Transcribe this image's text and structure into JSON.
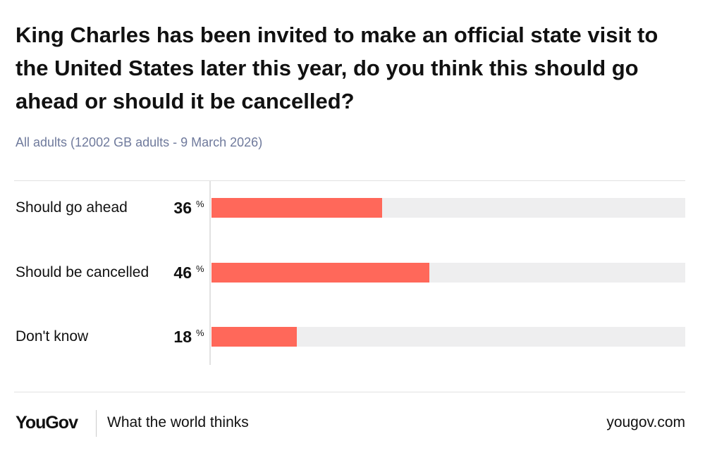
{
  "chart_data": {
    "type": "bar",
    "orientation": "horizontal",
    "title": "King Charles has been invited to make an official state visit to the United States later this year, do you think this should go ahead or should it be cancelled?",
    "subtitle": "All adults (12002 GB adults - 9 March 2026)",
    "categories": [
      "Should go ahead",
      "Should be cancelled",
      "Don't know"
    ],
    "values": [
      36,
      46,
      18
    ],
    "unit": "%",
    "color": "#ff685a",
    "track_color": "#eeeeef",
    "xlim": [
      0,
      100
    ]
  },
  "footer": {
    "logo": "YouGov",
    "tagline": "What the world thinks",
    "site": "yougov.com"
  }
}
